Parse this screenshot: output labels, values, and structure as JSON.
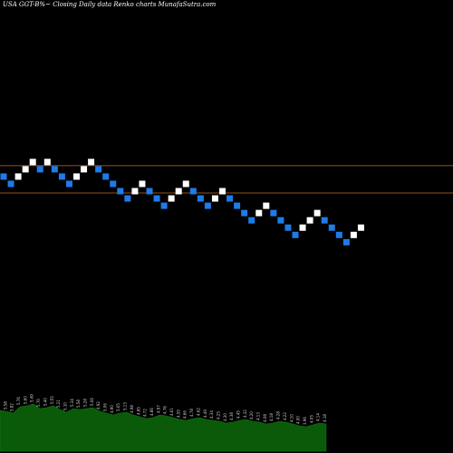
{
  "header": {
    "symbol": "USA GGT-B%~",
    "title": "Closing Daily data Renko charts MunafaSutra.com"
  },
  "chart_data": {
    "type": "renko",
    "title": "Closing Daily data Renko charts MunafaSutra.com",
    "up_color": "#ffffff",
    "down_color": "#1e7be8",
    "reference_line_color": "#c86c1c",
    "background": "#000000",
    "reference_lines": [
      13,
      10
    ],
    "bricks": [
      {
        "dir": "down",
        "level": 12
      },
      {
        "dir": "down",
        "level": 11
      },
      {
        "dir": "up",
        "level": 12
      },
      {
        "dir": "up",
        "level": 13
      },
      {
        "dir": "up",
        "level": 14
      },
      {
        "dir": "down",
        "level": 13
      },
      {
        "dir": "up",
        "level": 14
      },
      {
        "dir": "down",
        "level": 13
      },
      {
        "dir": "down",
        "level": 12
      },
      {
        "dir": "down",
        "level": 11
      },
      {
        "dir": "up",
        "level": 12
      },
      {
        "dir": "up",
        "level": 13
      },
      {
        "dir": "up",
        "level": 14
      },
      {
        "dir": "down",
        "level": 13
      },
      {
        "dir": "down",
        "level": 12
      },
      {
        "dir": "down",
        "level": 11
      },
      {
        "dir": "down",
        "level": 10
      },
      {
        "dir": "down",
        "level": 9
      },
      {
        "dir": "up",
        "level": 10
      },
      {
        "dir": "up",
        "level": 11
      },
      {
        "dir": "down",
        "level": 10
      },
      {
        "dir": "down",
        "level": 9
      },
      {
        "dir": "down",
        "level": 8
      },
      {
        "dir": "up",
        "level": 9
      },
      {
        "dir": "up",
        "level": 10
      },
      {
        "dir": "up",
        "level": 11
      },
      {
        "dir": "down",
        "level": 10
      },
      {
        "dir": "down",
        "level": 9
      },
      {
        "dir": "down",
        "level": 8
      },
      {
        "dir": "up",
        "level": 9
      },
      {
        "dir": "up",
        "level": 10
      },
      {
        "dir": "down",
        "level": 9
      },
      {
        "dir": "down",
        "level": 8
      },
      {
        "dir": "down",
        "level": 7
      },
      {
        "dir": "down",
        "level": 6
      },
      {
        "dir": "up",
        "level": 7
      },
      {
        "dir": "up",
        "level": 8
      },
      {
        "dir": "down",
        "level": 7
      },
      {
        "dir": "down",
        "level": 6
      },
      {
        "dir": "down",
        "level": 5
      },
      {
        "dir": "down",
        "level": 4
      },
      {
        "dir": "up",
        "level": 5
      },
      {
        "dir": "up",
        "level": 6
      },
      {
        "dir": "up",
        "level": 7
      },
      {
        "dir": "down",
        "level": 6
      },
      {
        "dir": "down",
        "level": 5
      },
      {
        "dir": "down",
        "level": 4
      },
      {
        "dir": "down",
        "level": 3
      },
      {
        "dir": "up",
        "level": 4
      },
      {
        "dir": "up",
        "level": 5
      }
    ],
    "volume": [
      45,
      44,
      42,
      49,
      50,
      52,
      47,
      48,
      50,
      46,
      43,
      47,
      46,
      47,
      48,
      44,
      42,
      40,
      42,
      43,
      40,
      38,
      36,
      37,
      40,
      39,
      37,
      35,
      34,
      36,
      37,
      35,
      34,
      33,
      31,
      32,
      34,
      35,
      33,
      32,
      30,
      31,
      33,
      32,
      30,
      28,
      27,
      29,
      31,
      30
    ],
    "volume_color": "#0a5a0a",
    "volume_labels": [
      "5.40",
      "5.58",
      "5.82",
      "5.76",
      "5.60",
      "5.49",
      "5.70",
      "5.40",
      "5.55",
      "5.21",
      "5.10",
      "5.34",
      "5.58",
      "5.28",
      "5.06",
      "4.92",
      "5.06",
      "4.90",
      "5.05",
      "5.13",
      "4.98",
      "4.85",
      "4.72",
      "4.86",
      "4.97",
      "4.76",
      "4.61",
      "4.55",
      "4.66",
      "4.78",
      "4.62",
      "4.49",
      "4.34",
      "4.25",
      "4.30",
      "4.38",
      "4.45",
      "4.32",
      "4.20",
      "4.13",
      "4.08",
      "4.18",
      "4.28",
      "4.22",
      "4.10",
      "4.00",
      "3.96",
      "4.05",
      "4.14",
      "4.18"
    ]
  }
}
